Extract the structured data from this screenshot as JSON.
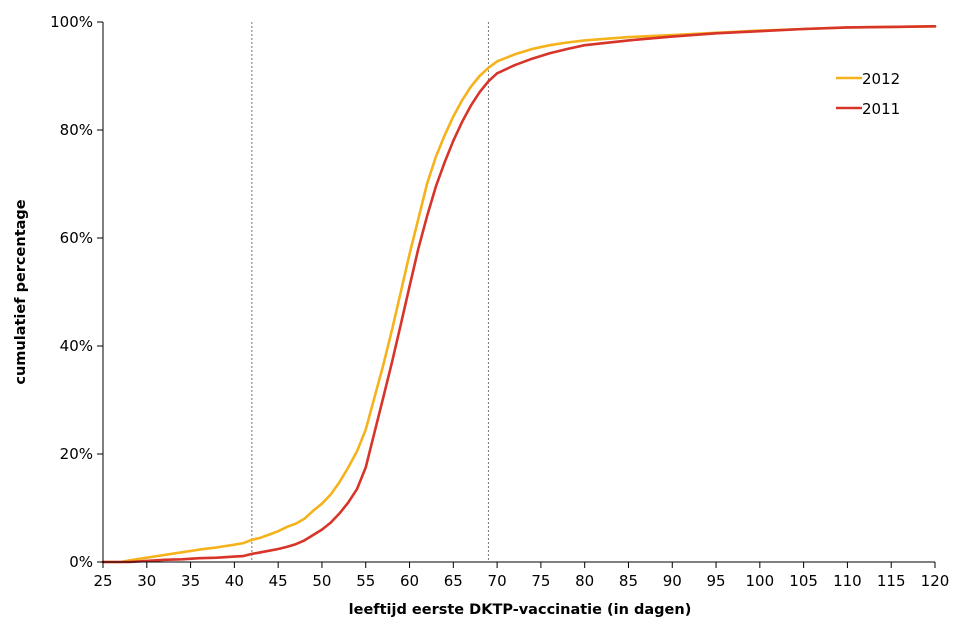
{
  "chart_data": {
    "type": "line",
    "xlabel": "leeftijd eerste DKTP-vaccinatie (in dagen)",
    "ylabel": "cumulatief percentage",
    "xlim": [
      25,
      120
    ],
    "ylim": [
      0,
      100
    ],
    "x_ticks": [
      25,
      30,
      35,
      40,
      45,
      50,
      55,
      60,
      65,
      70,
      75,
      80,
      85,
      90,
      95,
      100,
      105,
      110,
      115,
      120
    ],
    "y_ticks": [
      0,
      20,
      40,
      60,
      80,
      100
    ],
    "y_tick_labels": [
      "0%",
      "20%",
      "40%",
      "60%",
      "80%",
      "100%"
    ],
    "reference_lines_x": [
      42,
      69
    ],
    "grid": false,
    "legend_position": "top-right",
    "series": [
      {
        "name": "2012",
        "color": "#f5b21b",
        "points": [
          [
            25,
            0
          ],
          [
            27,
            0
          ],
          [
            28,
            0.3
          ],
          [
            30,
            0.8
          ],
          [
            32,
            1.3
          ],
          [
            34,
            1.8
          ],
          [
            36,
            2.3
          ],
          [
            38,
            2.7
          ],
          [
            40,
            3.2
          ],
          [
            41,
            3.5
          ],
          [
            42,
            4.1
          ],
          [
            43,
            4.5
          ],
          [
            44,
            5.1
          ],
          [
            45,
            5.7
          ],
          [
            46,
            6.5
          ],
          [
            47,
            7.1
          ],
          [
            48,
            8.0
          ],
          [
            49,
            9.5
          ],
          [
            50,
            10.8
          ],
          [
            51,
            12.5
          ],
          [
            52,
            14.8
          ],
          [
            53,
            17.5
          ],
          [
            54,
            20.5
          ],
          [
            55,
            24.5
          ],
          [
            56,
            30.5
          ],
          [
            57,
            36.5
          ],
          [
            58,
            43
          ],
          [
            59,
            50
          ],
          [
            60,
            57
          ],
          [
            61,
            63.5
          ],
          [
            62,
            70
          ],
          [
            63,
            75
          ],
          [
            64,
            79
          ],
          [
            65,
            82.5
          ],
          [
            66,
            85.5
          ],
          [
            67,
            88
          ],
          [
            68,
            90
          ],
          [
            69,
            91.5
          ],
          [
            70,
            92.7
          ],
          [
            72,
            94
          ],
          [
            74,
            95
          ],
          [
            76,
            95.7
          ],
          [
            78,
            96.2
          ],
          [
            80,
            96.6
          ],
          [
            85,
            97.2
          ],
          [
            90,
            97.6
          ],
          [
            95,
            98
          ],
          [
            100,
            98.4
          ],
          [
            105,
            98.7
          ],
          [
            110,
            99
          ],
          [
            115,
            99.1
          ],
          [
            120,
            99.2
          ]
        ]
      },
      {
        "name": "2011",
        "color": "#d7342a",
        "points": [
          [
            25,
            0
          ],
          [
            28,
            0
          ],
          [
            30,
            0.2
          ],
          [
            32,
            0.4
          ],
          [
            34,
            0.5
          ],
          [
            36,
            0.7
          ],
          [
            38,
            0.8
          ],
          [
            40,
            1.0
          ],
          [
            41,
            1.1
          ],
          [
            42,
            1.5
          ],
          [
            43,
            1.8
          ],
          [
            44,
            2.1
          ],
          [
            45,
            2.4
          ],
          [
            46,
            2.8
          ],
          [
            47,
            3.3
          ],
          [
            48,
            4.0
          ],
          [
            49,
            5.0
          ],
          [
            50,
            6.0
          ],
          [
            51,
            7.3
          ],
          [
            52,
            9.0
          ],
          [
            53,
            11.0
          ],
          [
            54,
            13.5
          ],
          [
            55,
            17.5
          ],
          [
            56,
            24
          ],
          [
            57,
            30.5
          ],
          [
            58,
            37
          ],
          [
            59,
            44
          ],
          [
            60,
            51
          ],
          [
            61,
            58
          ],
          [
            62,
            64
          ],
          [
            63,
            69.5
          ],
          [
            64,
            74
          ],
          [
            65,
            78
          ],
          [
            66,
            81.5
          ],
          [
            67,
            84.5
          ],
          [
            68,
            87
          ],
          [
            69,
            89
          ],
          [
            70,
            90.5
          ],
          [
            72,
            92
          ],
          [
            74,
            93.2
          ],
          [
            76,
            94.2
          ],
          [
            78,
            95
          ],
          [
            80,
            95.7
          ],
          [
            85,
            96.6
          ],
          [
            90,
            97.3
          ],
          [
            95,
            97.9
          ],
          [
            100,
            98.3
          ],
          [
            105,
            98.7
          ],
          [
            110,
            99
          ],
          [
            115,
            99.1
          ],
          [
            120,
            99.2
          ]
        ]
      }
    ]
  }
}
